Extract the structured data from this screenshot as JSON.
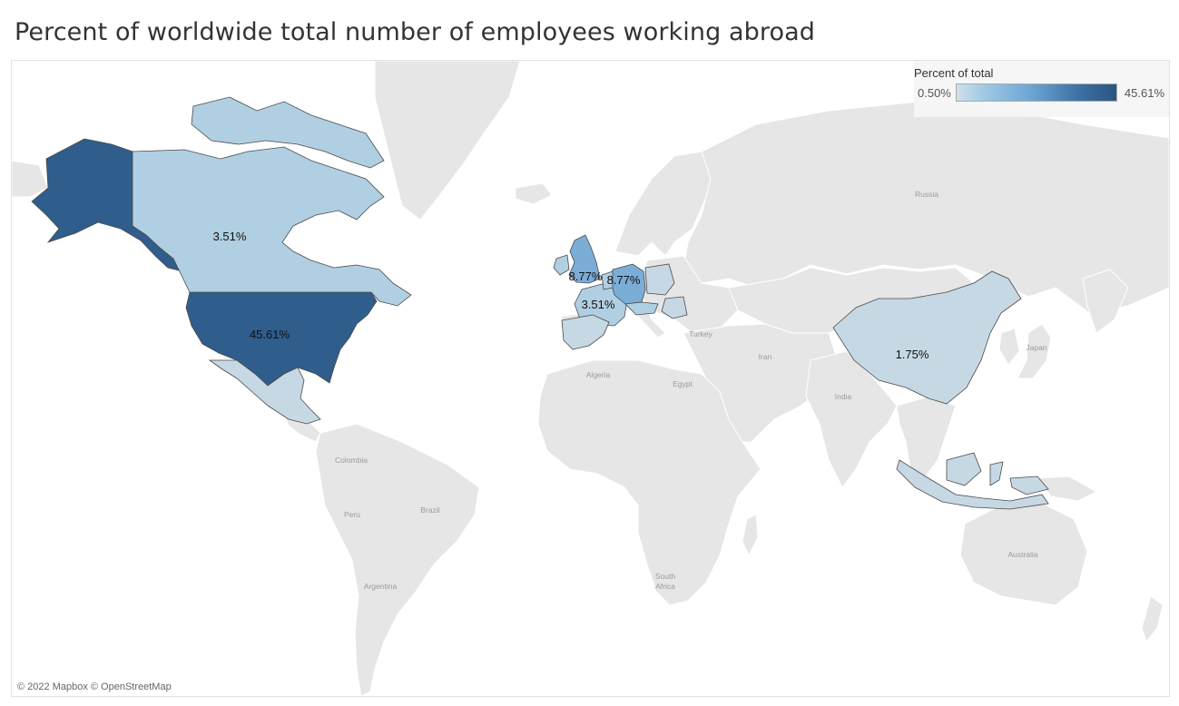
{
  "title": "Percent of worldwide total number of employees working abroad",
  "legend": {
    "title": "Percent of total",
    "min_label": "0.50%",
    "max_label": "45.61%",
    "colors": [
      "#cfe0ec",
      "#2a5582"
    ]
  },
  "credit": "© 2022 Mapbox © OpenStreetMap",
  "countries": [
    {
      "name": "United States",
      "value_label": "45.61%",
      "color": "#2f5d8c"
    },
    {
      "name": "Canada",
      "value_label": "3.51%",
      "color": "#b0cfe2"
    },
    {
      "name": "United Kingdom",
      "value_label": "8.77%",
      "color": "#7badd6"
    },
    {
      "name": "Germany",
      "value_label": "8.77%",
      "color": "#7badd6"
    },
    {
      "name": "France",
      "value_label": "3.51%",
      "color": "#b0cfe2"
    },
    {
      "name": "China",
      "value_label": "1.75%",
      "color": "#c6d8e4"
    }
  ],
  "place_labels": {
    "russia": "Russia",
    "japan": "Japan",
    "turkey": "Turkey",
    "iran": "Iran",
    "india": "India",
    "algeria": "Algeria",
    "egypt": "Egypt",
    "colombia": "Colombia",
    "brazil": "Brazil",
    "peru": "Peru",
    "argentina": "Argentina",
    "south_africa_1": "South",
    "south_africa_2": "Africa",
    "australia": "Australia"
  }
}
